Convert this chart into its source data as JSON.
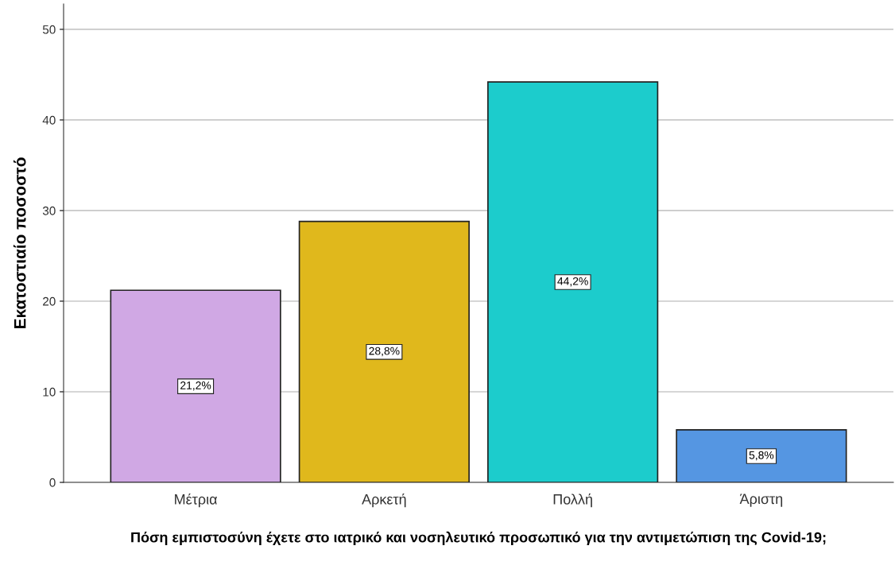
{
  "chart_data": {
    "type": "bar",
    "xlabel": "Πόση εμπιστοσύνη έχετε στο ιατρικό και νοσηλευτικό προσωπικό για την αντιμετώπιση της Covid-19;",
    "ylabel": "Εκατοστιαίο ποσοστό",
    "categories": [
      "Μέτρια",
      "Αρκετή",
      "Πολλή",
      "Άριστη"
    ],
    "values": [
      21.2,
      28.8,
      44.2,
      5.8
    ],
    "value_labels": [
      "21,2%",
      "28,8%",
      "44,2%",
      "5,8%"
    ],
    "colors": [
      "#d0a8e4",
      "#e0b81c",
      "#1ccccc",
      "#5596e2"
    ],
    "ylim": [
      0,
      52.8
    ],
    "yticks": [
      0,
      10,
      20,
      30,
      40,
      50
    ],
    "grid": "y"
  }
}
